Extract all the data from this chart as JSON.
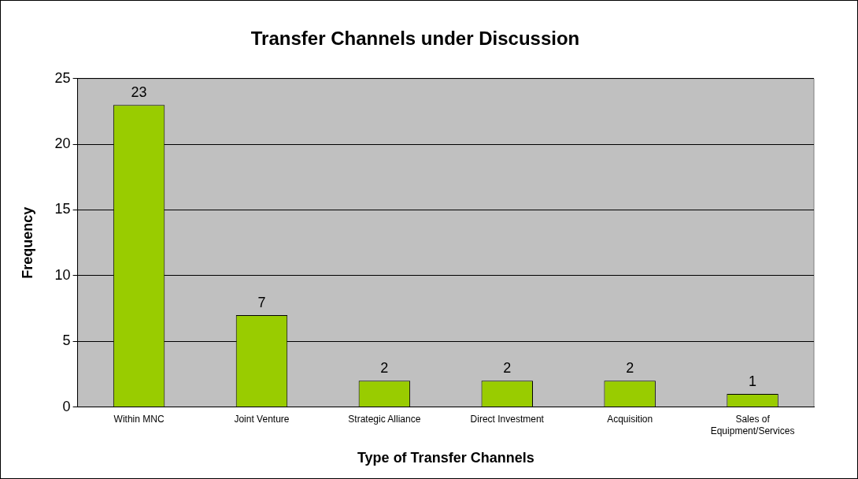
{
  "chart_data": {
    "type": "bar",
    "title": "Transfer Channels under Discussion",
    "xlabel": "Type of Transfer Channels",
    "ylabel": "Frequency",
    "categories": [
      "Within MNC",
      "Joint Venture",
      "Strategic Alliance",
      "Direct Investment",
      "Acquisition",
      "Sales of Equipment/Services"
    ],
    "values": [
      23,
      7,
      2,
      2,
      2,
      1
    ],
    "color": "#99cc00",
    "ylim": [
      0,
      25
    ],
    "yticks": [
      0,
      5,
      10,
      15,
      20,
      25
    ],
    "grid": "y",
    "legend": false,
    "data_labels": true
  }
}
